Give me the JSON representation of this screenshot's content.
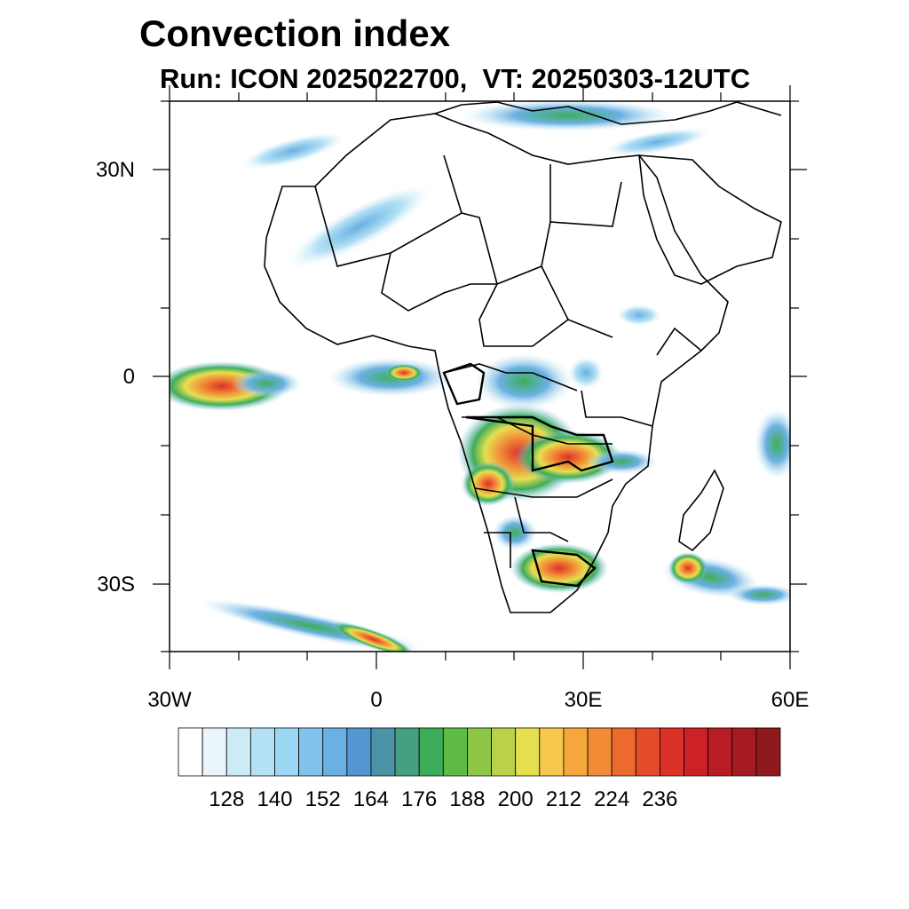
{
  "title": "Convection index",
  "subtitle": "Run: ICON 2025022700,  VT: 20250303-12UTC",
  "map": {
    "lat_labels": [
      "30N",
      "0",
      "30S"
    ],
    "lon_labels": [
      "30W",
      "0",
      "30E",
      "60E"
    ]
  },
  "colorbar": {
    "colors": [
      "#ffffff",
      "#eaf6fc",
      "#cdeaf7",
      "#b4e1f5",
      "#9cd7f3",
      "#82c2ec",
      "#6ab0e2",
      "#5496cf",
      "#4d93a8",
      "#45a07f",
      "#3ead5a",
      "#5ebb46",
      "#8ec748",
      "#b9d24a",
      "#e6df50",
      "#f6c84d",
      "#f6a83e",
      "#f28b36",
      "#ec6a2e",
      "#e44b2a",
      "#db3128",
      "#cc2227",
      "#b81d25",
      "#a61b22",
      "#8e1a1e"
    ],
    "tick_labels": [
      "128",
      "140",
      "152",
      "164",
      "176",
      "188",
      "200",
      "212",
      "224",
      "236"
    ]
  }
}
